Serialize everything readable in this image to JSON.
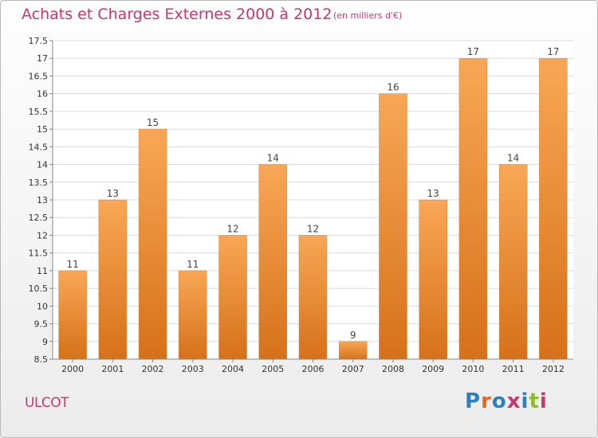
{
  "title": "Achats et Charges Externes 2000 à 2012",
  "subtitle": "(en milliers d'€)",
  "commune": "ULCOT",
  "logo": {
    "text": "Proxiti",
    "colors": [
      "#2e7fc0",
      "#e26a1c",
      "#2e7fc0",
      "#c8376c",
      "#2e7fc0",
      "#8cbf26",
      "#c8376c"
    ]
  },
  "colors": {
    "title": "#c8376c",
    "bar_light": "#f8a756",
    "bar_dark": "#d6711a"
  },
  "chart_data": {
    "type": "bar",
    "categories": [
      "2000",
      "2001",
      "2002",
      "2003",
      "2004",
      "2005",
      "2006",
      "2007",
      "2008",
      "2009",
      "2010",
      "2011",
      "2012"
    ],
    "values": [
      11,
      13,
      15,
      11,
      12,
      14,
      12,
      9,
      16,
      13,
      17,
      14,
      17
    ],
    "value_labels": [
      "11",
      "13",
      "15",
      "11",
      "12",
      "14",
      "12",
      "9",
      "16",
      "13",
      "17",
      "14",
      "17"
    ],
    "y_ticks": [
      "8.5",
      "9",
      "9.5",
      "10",
      "10.5",
      "11",
      "11.5",
      "12",
      "12.5",
      "13",
      "13.5",
      "14",
      "14.5",
      "15",
      "15.5",
      "16",
      "16.5",
      "17",
      "17.5"
    ],
    "ylim": [
      8.5,
      17.5
    ],
    "grid": true,
    "xlabel": "",
    "ylabel": ""
  }
}
